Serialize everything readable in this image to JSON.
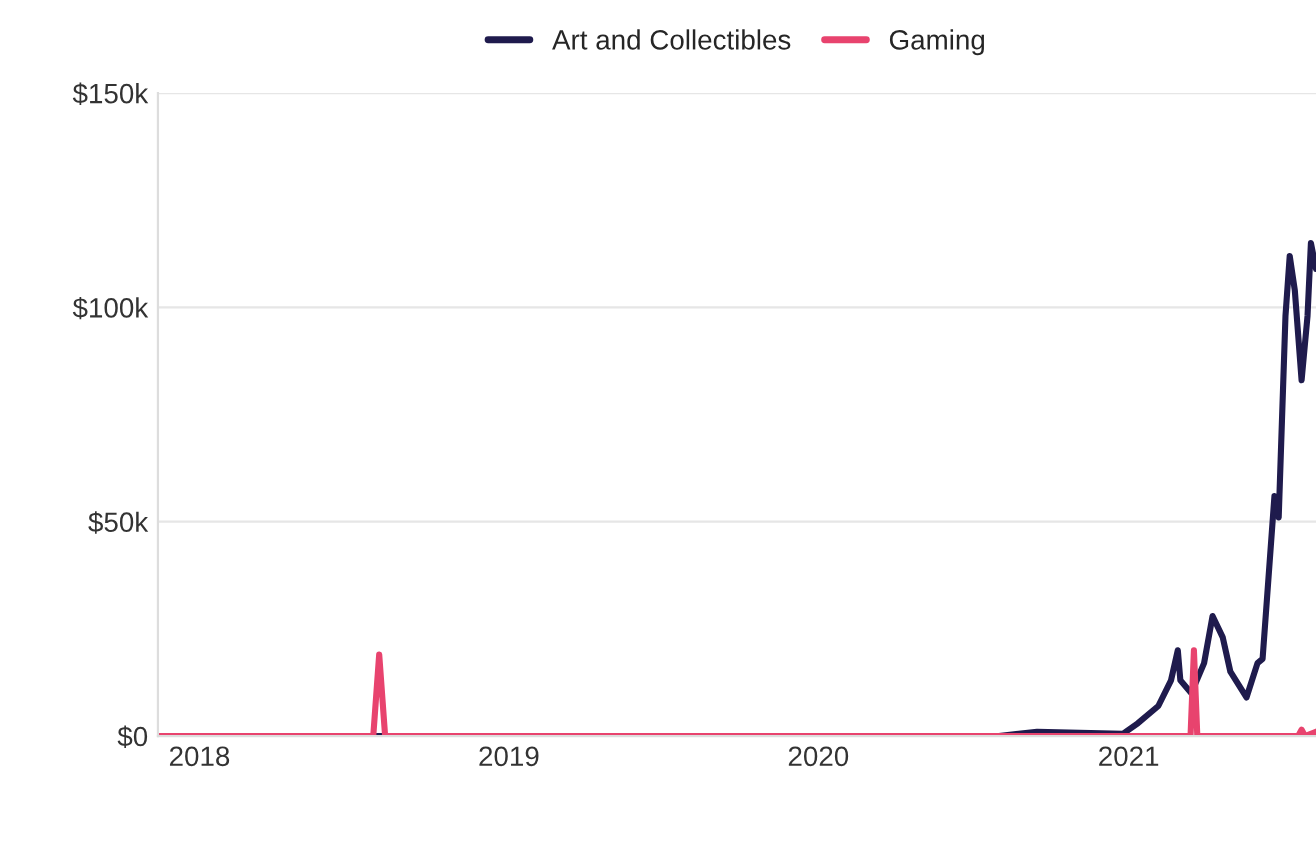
{
  "chart_data": {
    "type": "line",
    "series": [
      {
        "name": "Art and Collectibles",
        "color": "#1f1b4d",
        "x": [
          "2017-11-13",
          "2020-08-01",
          "2020-09-15",
          "2020-12-25",
          "2021-01-12",
          "2021-02-05",
          "2021-02-20",
          "2021-02-28",
          "2021-03-03",
          "2021-03-16",
          "2021-03-31",
          "2021-04-10",
          "2021-04-22",
          "2021-05-01",
          "2021-05-20",
          "2021-06-02",
          "2021-06-08",
          "2021-06-22",
          "2021-06-27",
          "2021-07-05",
          "2021-07-10",
          "2021-07-16",
          "2021-07-24",
          "2021-07-31",
          "2021-08-04",
          "2021-08-10"
        ],
        "values": [
          0,
          0,
          1,
          0.5,
          3,
          7,
          13,
          20,
          13,
          10,
          17,
          28,
          23,
          15,
          9,
          17,
          18,
          56,
          51,
          98,
          112,
          104,
          83,
          98,
          115,
          109
        ]
      },
      {
        "name": "Gaming",
        "color": "#e8436e",
        "x": [
          "2017-11-13",
          "2018-07-25",
          "2018-08-01",
          "2018-08-08",
          "2021-03-15",
          "2021-03-19",
          "2021-03-23",
          "2021-07-20",
          "2021-07-24",
          "2021-07-28",
          "2021-08-10"
        ],
        "values": [
          0,
          0,
          19,
          0,
          0,
          20,
          0,
          0,
          1.5,
          0,
          1
        ]
      }
    ],
    "xlim": [
      "2017-11-13",
      "2021-08-10"
    ],
    "xticks": [
      {
        "value": "2018-01-01",
        "label": "2018"
      },
      {
        "value": "2019-01-01",
        "label": "2019"
      },
      {
        "value": "2020-01-01",
        "label": "2020"
      },
      {
        "value": "2021-01-01",
        "label": "2021"
      }
    ],
    "ylim": [
      0,
      150
    ],
    "yticks": [
      {
        "value": 0,
        "label": "$0"
      },
      {
        "value": 50,
        "label": "$50k"
      },
      {
        "value": 100,
        "label": "$100k"
      },
      {
        "value": 150,
        "label": "$150k"
      }
    ],
    "grid": "y",
    "legend": "top"
  }
}
